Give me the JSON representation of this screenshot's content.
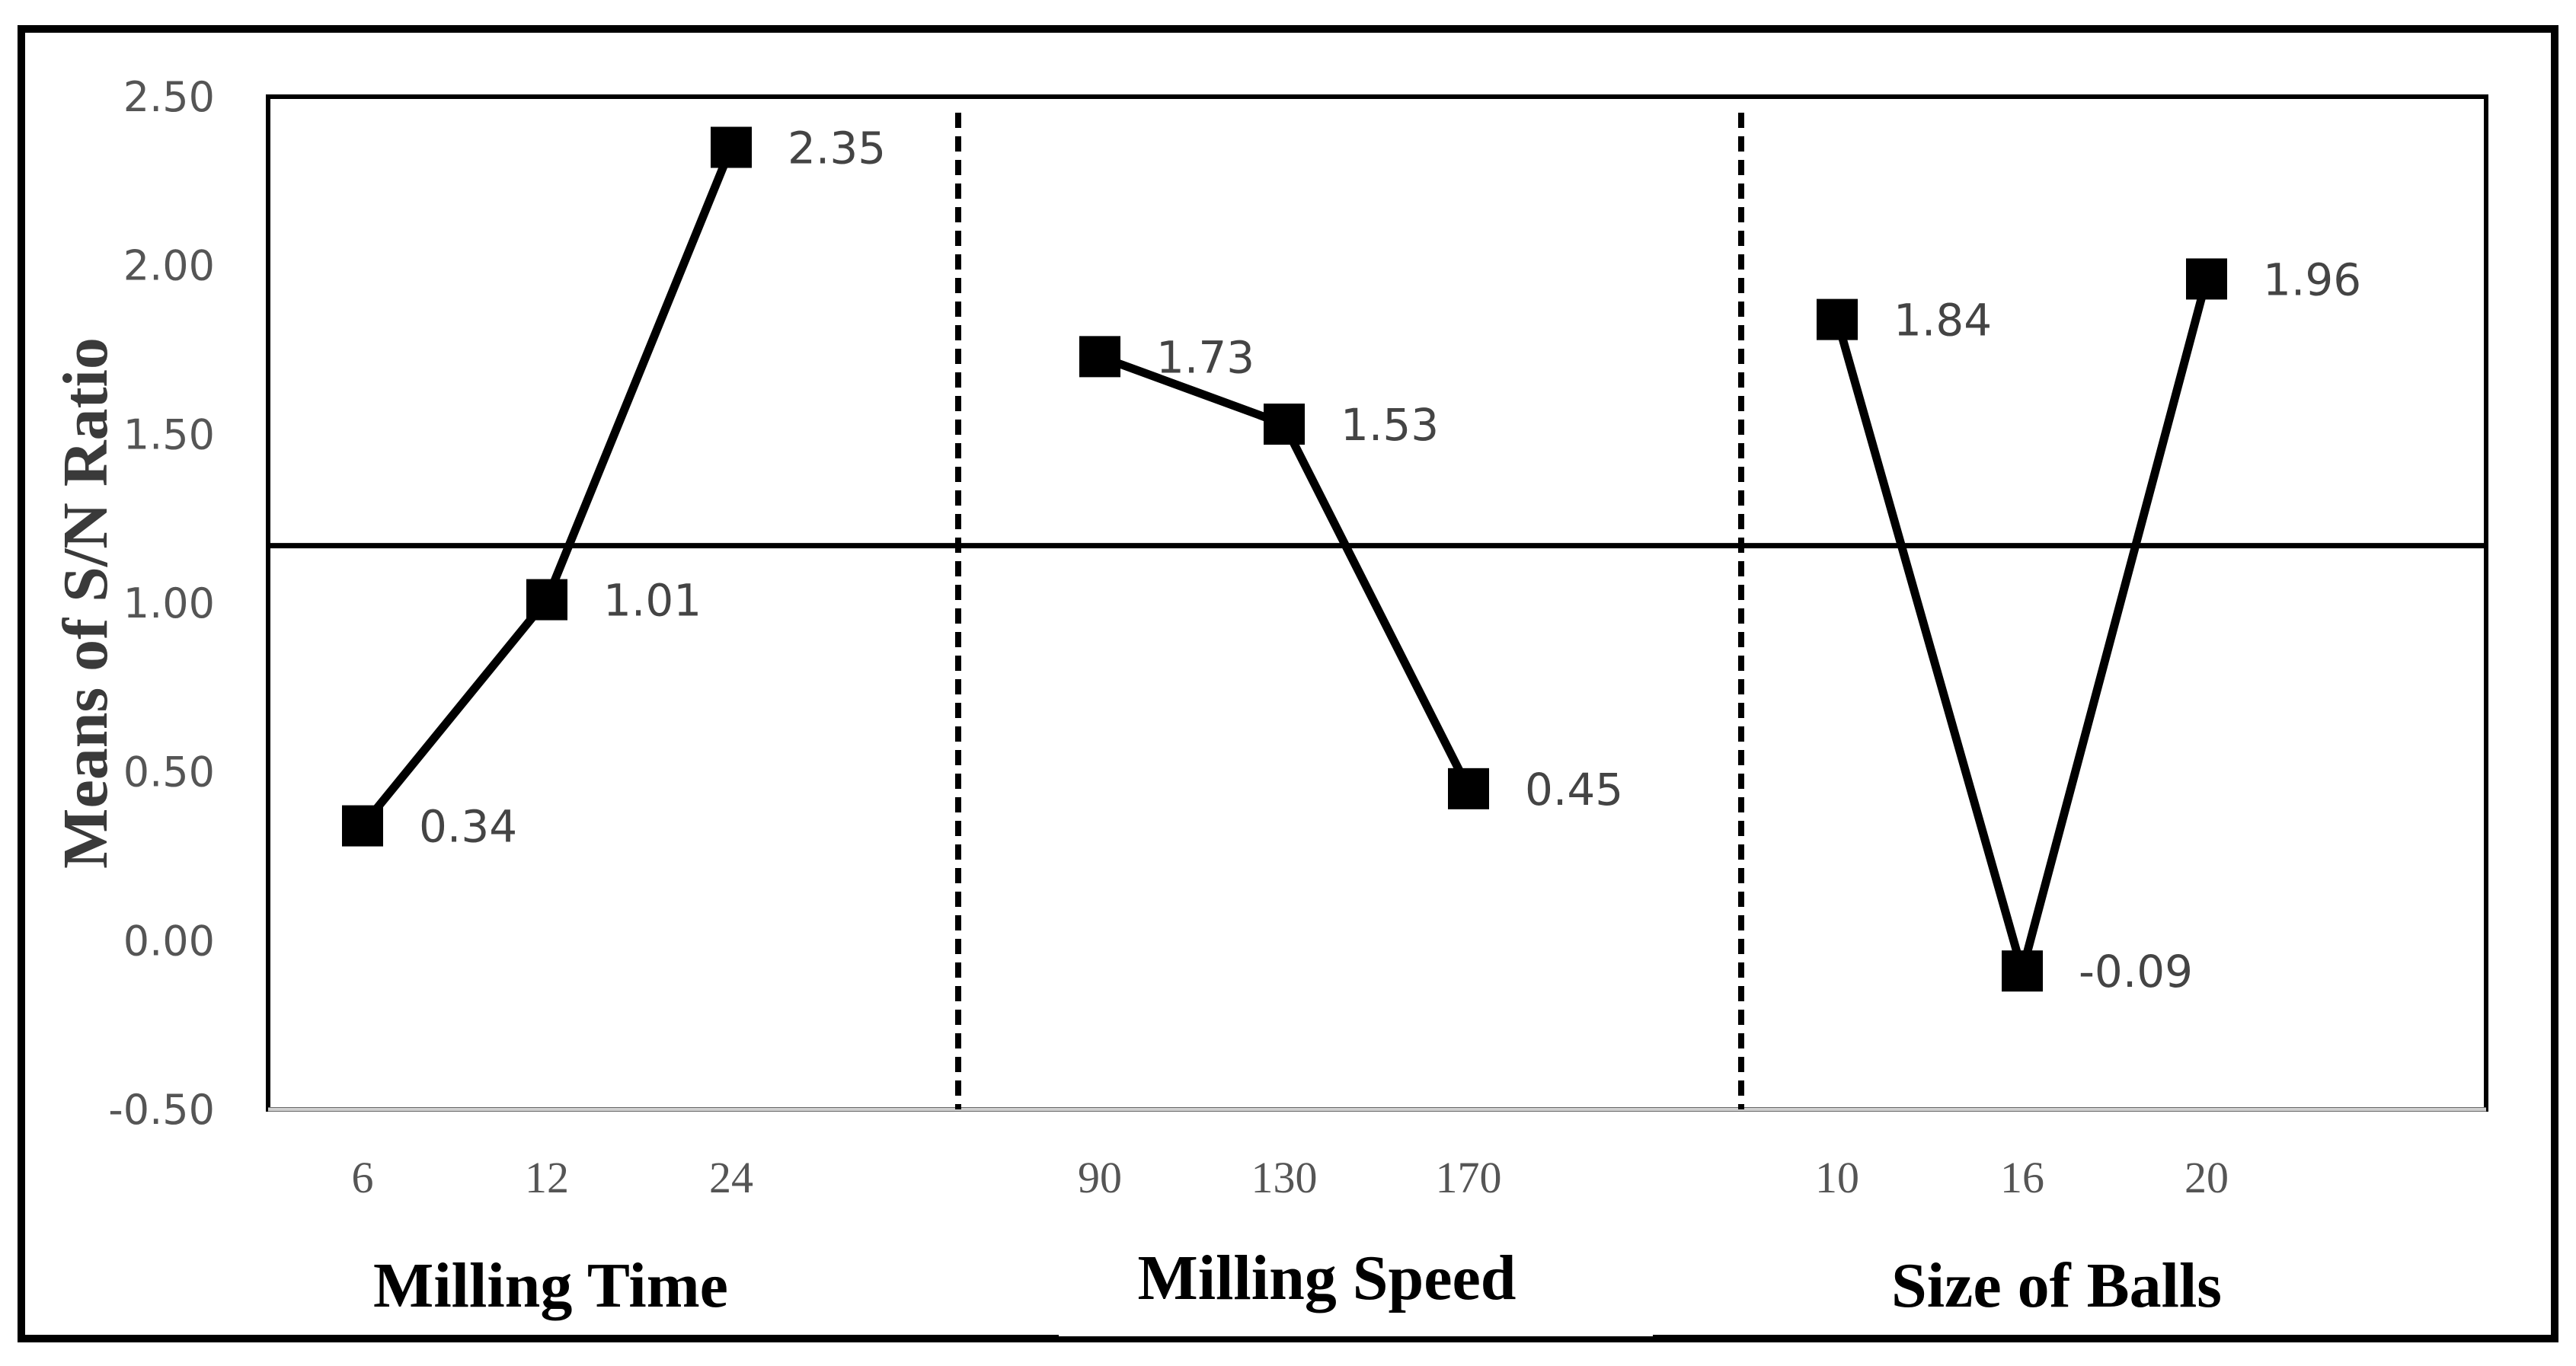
{
  "chart_data": {
    "type": "line",
    "title": "",
    "ylabel": "Means of S/N Ratio",
    "ylim": [
      -0.5,
      2.5
    ],
    "yticks": [
      "2.50",
      "2.00",
      "1.50",
      "1.00",
      "0.50",
      "0.00",
      "-0.50"
    ],
    "overall_mean": 1.17,
    "grid": false,
    "panels": [
      {
        "factor": "Milling Time",
        "levels": [
          "6",
          "12",
          "24"
        ],
        "values": [
          0.34,
          1.01,
          2.35
        ],
        "labels": [
          "0.34",
          "1.01",
          "2.35"
        ]
      },
      {
        "factor": "Milling Speed",
        "levels": [
          "90",
          "130",
          "170"
        ],
        "values": [
          1.73,
          1.53,
          0.45
        ],
        "labels": [
          "1.73",
          "1.53",
          "0.45"
        ]
      },
      {
        "factor": "Size of Balls",
        "levels": [
          "10",
          "16",
          "20"
        ],
        "values": [
          1.84,
          -0.09,
          1.96
        ],
        "labels": [
          "1.84",
          "-0.09",
          "1.96"
        ]
      }
    ]
  },
  "colors": {
    "line": "#000000",
    "marker": "#000000",
    "tick_text": "#555555"
  }
}
